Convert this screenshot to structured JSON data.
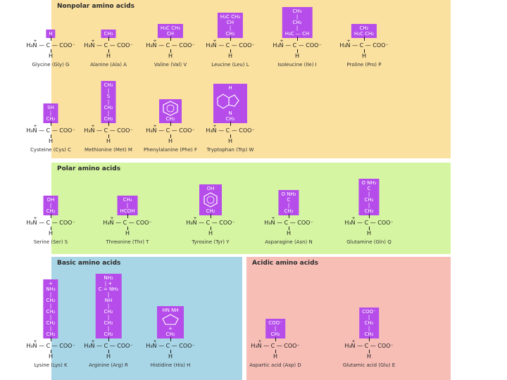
{
  "panels": {
    "nonpolar": {
      "title": "Nonpolar amino acids",
      "color": "#fbe1a0"
    },
    "polar": {
      "title": "Polar amino acids",
      "color": "#d6f5a3"
    },
    "basic": {
      "title": "Basic amino acids",
      "color": "#a9d6e6"
    },
    "acidic": {
      "title": "Acidic amino acids",
      "color": "#f7beb6"
    }
  },
  "side_chain_color": "#b64dea",
  "backbone": {
    "n": "H₃N — C — COO⁻",
    "plus": "+",
    "h": "H"
  },
  "amino_acids": {
    "glycine": {
      "name": "Glycine (Gly) G",
      "side": [
        "H"
      ]
    },
    "alanine": {
      "name": "Alanine (Ala) A",
      "side": [
        "CH₃"
      ]
    },
    "valine": {
      "name": "Valine (Val) V",
      "side": [
        "H₃C   CH₃",
        "CH"
      ]
    },
    "leucine": {
      "name": "Leucine (Leu) L",
      "side": [
        "H₃C   CH₃",
        "CH",
        "|",
        "CH₂"
      ]
    },
    "isoleucine": {
      "name": "Isoleucine (Ile) I",
      "side": [
        "CH₃",
        "|",
        "CH₂",
        "|",
        "H₃C — CH"
      ]
    },
    "proline": {
      "name": "Proline (Pro) P",
      "side": [
        "CH₂",
        "H₂C   CH₂"
      ]
    },
    "cysteine": {
      "name": "Cysteine (Cys) C",
      "side": [
        "SH",
        "|",
        "CH₂"
      ]
    },
    "methionine": {
      "name": "Methionine (Met) M",
      "side": [
        "CH₃",
        "|",
        "S",
        "|",
        "CH₂",
        "|",
        "CH₂"
      ]
    },
    "phenylalanine": {
      "name": "Phenylalanine (Phe) F",
      "side": [
        "CH₂"
      ]
    },
    "tryptophan": {
      "name": "Tryptophan (Trp) W",
      "side": [
        "H",
        "N",
        "CH₂"
      ]
    },
    "serine": {
      "name": "Serine (Ser) S",
      "side": [
        "OH",
        "|",
        "CH₂"
      ]
    },
    "threonine": {
      "name": "Threonine (Thr) T",
      "side": [
        "CH₃",
        "|",
        "HCOH"
      ]
    },
    "tyrosine": {
      "name": "Tyrosine (Tyr) Y",
      "side": [
        "OH",
        "CH₂"
      ]
    },
    "asparagine": {
      "name": "Asparagine (Asn) N",
      "side": [
        "O     NH₂",
        "C",
        "|",
        "CH₂"
      ]
    },
    "glutamine": {
      "name": "Glutamine (Gln) Q",
      "side": [
        "O     NH₂",
        "C",
        "|",
        "CH₂",
        "|",
        "CH₂"
      ]
    },
    "lysine": {
      "name": "Lysine (Lys) K",
      "side": [
        "+",
        "NH₃",
        "|",
        "CH₂",
        "|",
        "CH₂",
        "|",
        "CH₂",
        "|",
        "CH₂"
      ]
    },
    "arginine": {
      "name": "Arginine (Arg) R",
      "side": [
        "NH₂",
        "|   +",
        "C = NH₂",
        "|",
        "NH",
        "|",
        "CH₂",
        "|",
        "CH₂",
        "|",
        "CH₂"
      ]
    },
    "histidine": {
      "name": "Histidine (His) H",
      "side": [
        "HN     NH",
        "+",
        "CH₂"
      ]
    },
    "aspartic": {
      "name": "Aspartic acid (Asp) D",
      "side": [
        "COO⁻",
        "|",
        "CH₂"
      ]
    },
    "glutamic": {
      "name": "Glutamic acid (Glu) E",
      "side": [
        "COO⁻",
        "|",
        "CH₂",
        "|",
        "CH₂"
      ]
    }
  }
}
